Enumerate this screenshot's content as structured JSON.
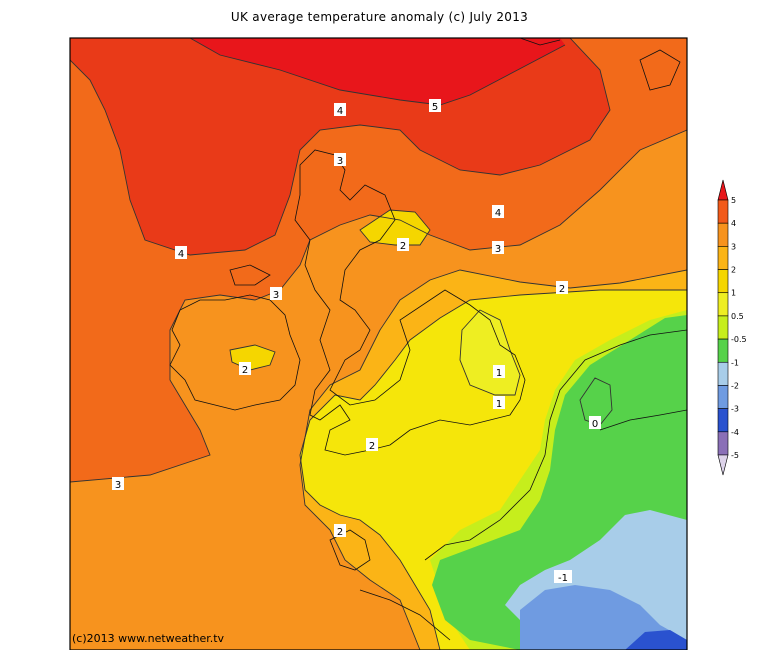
{
  "title": "UK average temperature anomaly (c) July 2013",
  "credit": "(c)2013 www.netweather.tv",
  "legend": {
    "ticks": [
      "5",
      "4",
      "3",
      "2",
      "1",
      "0.5",
      "-0.5",
      "-1",
      "-2",
      "-3",
      "-4",
      "-5"
    ],
    "colors": [
      "#e8161b",
      "#f25a1a",
      "#f7931e",
      "#fbb416",
      "#f5d600",
      "#eeee22",
      "#c6ee1c",
      "#56d24a",
      "#a8cde9",
      "#6f9be1",
      "#2a52cf",
      "#8a6fb7",
      "#b8a2d2",
      "#ddd3ea"
    ]
  },
  "contour_labels": [
    {
      "id": "c5",
      "text": "5"
    },
    {
      "id": "c4a",
      "text": "4"
    },
    {
      "id": "c3a",
      "text": "3"
    },
    {
      "id": "c4b",
      "text": "4"
    },
    {
      "id": "c3b",
      "text": "3"
    },
    {
      "id": "c2a",
      "text": "2"
    },
    {
      "id": "c2b",
      "text": "2"
    },
    {
      "id": "c4c",
      "text": "4"
    },
    {
      "id": "c3c",
      "text": "3"
    },
    {
      "id": "c2c",
      "text": "2"
    },
    {
      "id": "c1a",
      "text": "1"
    },
    {
      "id": "c1b",
      "text": "1"
    },
    {
      "id": "c0",
      "text": "0"
    },
    {
      "id": "c2d",
      "text": "2"
    },
    {
      "id": "c3d",
      "text": "3"
    },
    {
      "id": "c2e",
      "text": "2"
    },
    {
      "id": "cm1",
      "text": "-1"
    }
  ]
}
